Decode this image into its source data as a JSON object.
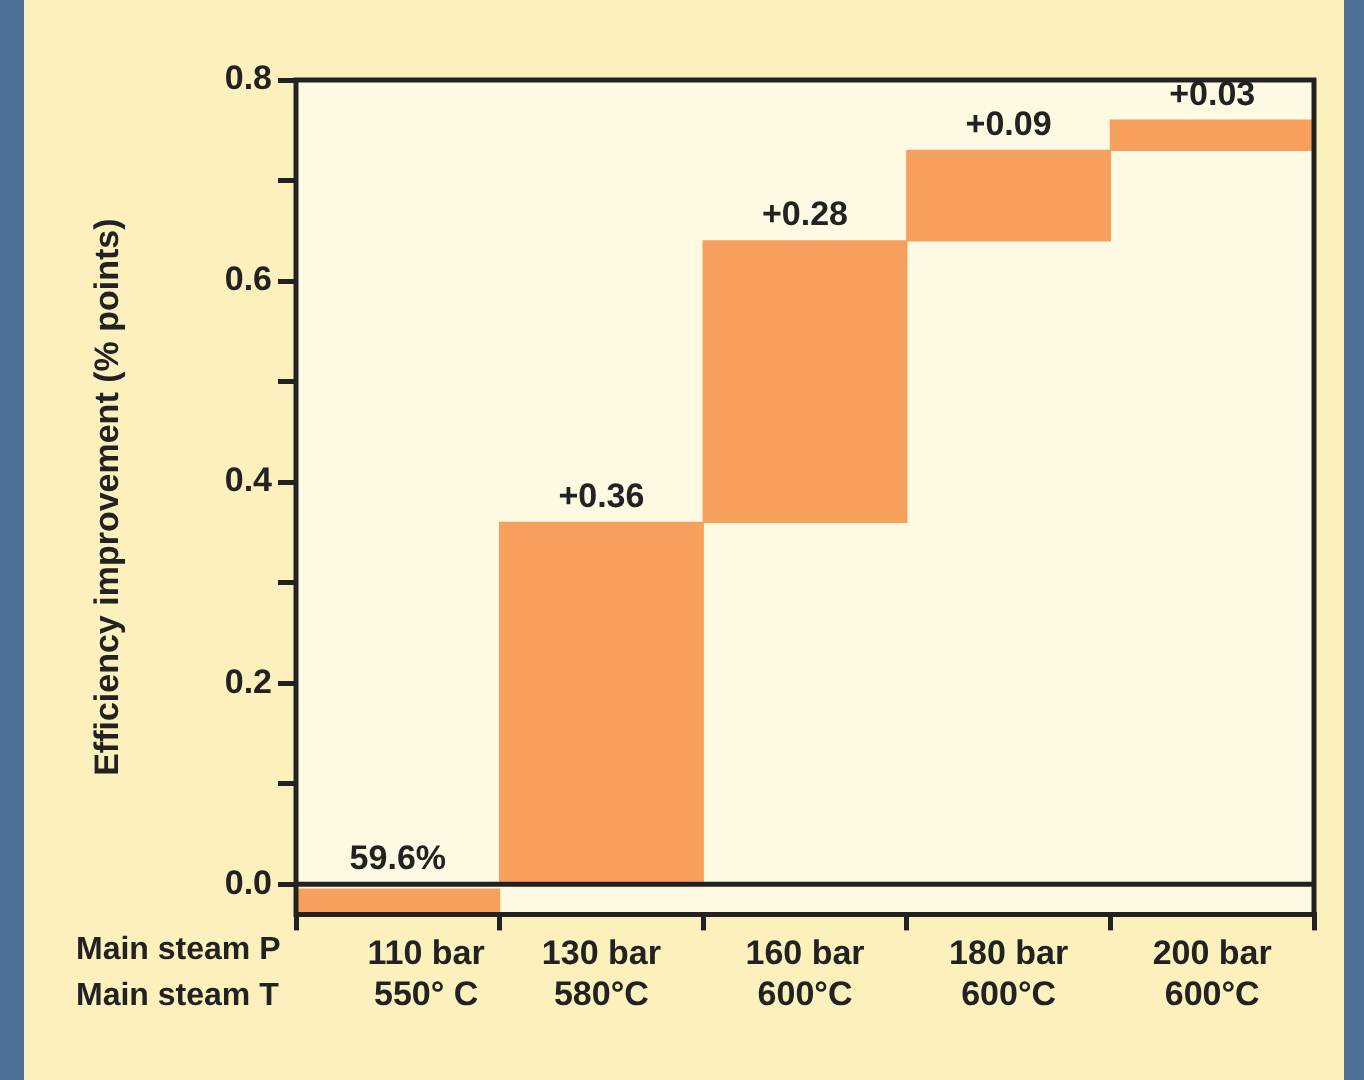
{
  "chart_data": {
    "type": "bar",
    "ylabel": "Efficiency improvement (% points)",
    "categories": [
      "110 bar\n550° C",
      "130 bar\n580°C",
      "160 bar\n600°C",
      "180 bar\n600°C",
      "200 bar\n600°C"
    ],
    "base": [
      -0.03,
      0,
      0.36,
      0.64,
      0.73
    ],
    "values": [
      0.025,
      0.36,
      0.28,
      0.09,
      0.03
    ],
    "value_labels": [
      null,
      "+0.36",
      "+0.28",
      "+0.09",
      "+0.03"
    ],
    "color": "#f7a05e",
    "ylim": [
      -0.03,
      0.8
    ],
    "yticks": [
      {
        "value": 0,
        "label": "0.0"
      },
      {
        "value": 0.1,
        "label": null
      },
      {
        "value": 0.2,
        "label": "0.2"
      },
      {
        "value": 0.3,
        "label": null
      },
      {
        "value": 0.4,
        "label": "0.4"
      },
      {
        "value": 0.5,
        "label": null
      },
      {
        "value": 0.6,
        "label": "0.6"
      },
      {
        "value": 0.7,
        "label": null
      },
      {
        "value": 0.8,
        "label": "0.8"
      }
    ],
    "ref_lines": [
      {
        "axis": "y",
        "value": 0,
        "color": "#222222"
      }
    ],
    "annotations": [
      "Main steam P",
      "Main steam T",
      {
        "text": "59.6%",
        "x": "110 bar\n550° C",
        "y": 0
      }
    ],
    "grid": false,
    "legend": false
  }
}
